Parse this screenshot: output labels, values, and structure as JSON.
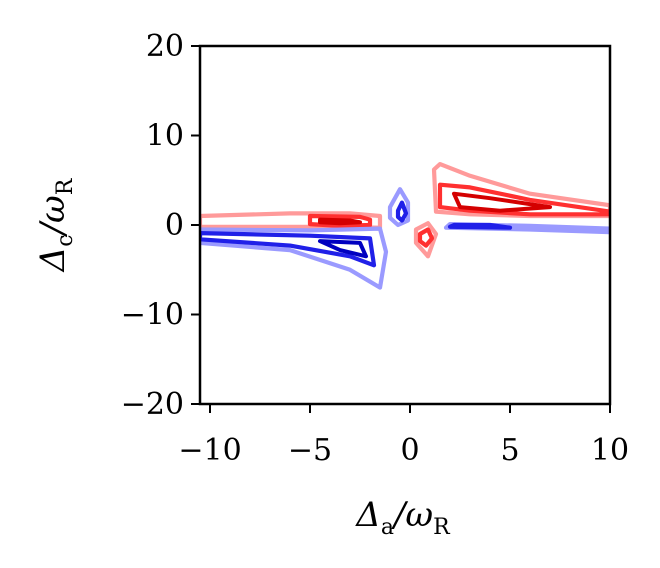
{
  "chart_data": {
    "type": "contour",
    "title": "",
    "xlabel": {
      "main": "Δ",
      "sub": "a",
      "slash": "/ω",
      "sub2": "R"
    },
    "ylabel": {
      "main": "Δ",
      "sub": "c",
      "slash": "/ω",
      "sub2": "R"
    },
    "xlim": [
      -10.5,
      10
    ],
    "ylim": [
      -20,
      20
    ],
    "xticks": [
      -10,
      -5,
      0,
      5,
      10
    ],
    "xtick_labels": [
      "−10",
      "−5",
      "0",
      "5",
      "10"
    ],
    "yticks": [
      -20,
      -10,
      0,
      10,
      20
    ],
    "ytick_labels": [
      "−20",
      "−10",
      "0",
      "10",
      "20"
    ],
    "grid": false,
    "legend": "none",
    "colormap": "bwr",
    "colors": {
      "red_light": "#ff9a9a",
      "red_mid": "#ff3030",
      "red_dark": "#d40000",
      "blue_light": "#9a9aff",
      "blue_mid": "#2020e8",
      "blue_dark": "#0000c0",
      "white": "#ffffff"
    },
    "contours": [
      {
        "sign": "positive",
        "level": "low",
        "color": "red_light",
        "path": [
          [
            -10.5,
            1.0
          ],
          [
            -6,
            1.3
          ],
          [
            -3,
            1.3
          ],
          [
            -1.5,
            1.0
          ],
          [
            -1.5,
            -0.3
          ],
          [
            -4,
            -0.2
          ],
          [
            -10.5,
            -0.2
          ]
        ]
      },
      {
        "sign": "positive",
        "level": "mid",
        "color": "red_mid",
        "path": [
          [
            -5,
            1.0
          ],
          [
            -2.5,
            0.9
          ],
          [
            -2,
            0.6
          ],
          [
            -2,
            0.0
          ],
          [
            -3.5,
            -0.1
          ],
          [
            -5,
            0.1
          ]
        ]
      },
      {
        "sign": "positive",
        "level": "high",
        "color": "red_dark",
        "path": [
          [
            -4.5,
            0.6
          ],
          [
            -3,
            0.5
          ],
          [
            -2.5,
            0.3
          ],
          [
            -3.5,
            0.2
          ],
          [
            -4.5,
            0.3
          ]
        ]
      },
      {
        "sign": "positive",
        "level": "low",
        "color": "red_light",
        "path": [
          [
            1.2,
            6.2
          ],
          [
            1.5,
            6.8
          ],
          [
            3,
            5.5
          ],
          [
            6,
            3.5
          ],
          [
            10,
            2.2
          ],
          [
            10,
            1.0
          ],
          [
            6,
            1.0
          ],
          [
            3,
            1.2
          ],
          [
            1.3,
            1.5
          ]
        ]
      },
      {
        "sign": "positive",
        "level": "mid",
        "color": "red_mid",
        "path": [
          [
            1.5,
            4.5
          ],
          [
            3,
            4.2
          ],
          [
            6,
            2.8
          ],
          [
            10,
            1.5
          ],
          [
            10,
            1.2
          ],
          [
            6,
            1.2
          ],
          [
            3,
            1.6
          ],
          [
            1.5,
            2.0
          ]
        ]
      },
      {
        "sign": "positive",
        "level": "high",
        "color": "red_dark",
        "path": [
          [
            2.2,
            3.5
          ],
          [
            4,
            3.0
          ],
          [
            7,
            2.0
          ],
          [
            4.5,
            1.6
          ],
          [
            2.5,
            2.0
          ]
        ]
      },
      {
        "sign": "positive",
        "level": "low",
        "color": "red_light",
        "path": [
          [
            0.3,
            -0.5
          ],
          [
            0.9,
            0.2
          ],
          [
            1.3,
            -1.0
          ],
          [
            0.9,
            -3.5
          ],
          [
            0.3,
            -2.0
          ]
        ]
      },
      {
        "sign": "positive",
        "level": "mid",
        "color": "red_mid",
        "path": [
          [
            0.5,
            -1.0
          ],
          [
            0.9,
            -0.5
          ],
          [
            1.1,
            -1.5
          ],
          [
            0.8,
            -2.3
          ],
          [
            0.5,
            -1.8
          ]
        ]
      },
      {
        "sign": "negative",
        "level": "low",
        "color": "blue_light",
        "path": [
          [
            -10.5,
            -0.5
          ],
          [
            -5,
            -0.6
          ],
          [
            -1.5,
            -0.4
          ],
          [
            -1.2,
            -3.0
          ],
          [
            -1.5,
            -7.0
          ],
          [
            -3,
            -5.0
          ],
          [
            -6,
            -2.8
          ],
          [
            -10.5,
            -2.0
          ]
        ]
      },
      {
        "sign": "negative",
        "level": "mid",
        "color": "blue_mid",
        "path": [
          [
            -10.5,
            -0.9
          ],
          [
            -5,
            -1.2
          ],
          [
            -2,
            -1.5
          ],
          [
            -1.8,
            -4.5
          ],
          [
            -3,
            -3.5
          ],
          [
            -6,
            -2.3
          ],
          [
            -10.5,
            -1.6
          ]
        ]
      },
      {
        "sign": "negative",
        "level": "high",
        "color": "blue_dark",
        "path": [
          [
            -4.5,
            -1.8
          ],
          [
            -2.5,
            -2.0
          ],
          [
            -2.2,
            -3.5
          ],
          [
            -3.5,
            -2.8
          ]
        ]
      },
      {
        "sign": "negative",
        "level": "low",
        "color": "blue_light",
        "path": [
          [
            -1.0,
            2.0
          ],
          [
            -0.5,
            4.0
          ],
          [
            -0.1,
            2.5
          ],
          [
            -0.1,
            0.5
          ],
          [
            -0.6,
            0.0
          ],
          [
            -1.0,
            0.8
          ]
        ]
      },
      {
        "sign": "negative",
        "level": "mid",
        "color": "blue_mid",
        "path": [
          [
            -0.6,
            1.6
          ],
          [
            -0.4,
            2.5
          ],
          [
            -0.2,
            1.3
          ],
          [
            -0.4,
            0.5
          ],
          [
            -0.6,
            0.9
          ]
        ]
      },
      {
        "sign": "negative",
        "level": "low",
        "color": "blue_light",
        "path": [
          [
            1.8,
            -0.3
          ],
          [
            6,
            -0.5
          ],
          [
            10,
            -0.8
          ],
          [
            10,
            -0.4
          ],
          [
            6,
            -0.1
          ],
          [
            2.0,
            0.1
          ]
        ]
      },
      {
        "sign": "negative",
        "level": "mid",
        "color": "blue_mid",
        "path": [
          [
            2.0,
            -0.2
          ],
          [
            5,
            -0.3
          ],
          [
            4,
            0.0
          ],
          [
            2.2,
            0.0
          ]
        ]
      }
    ]
  }
}
